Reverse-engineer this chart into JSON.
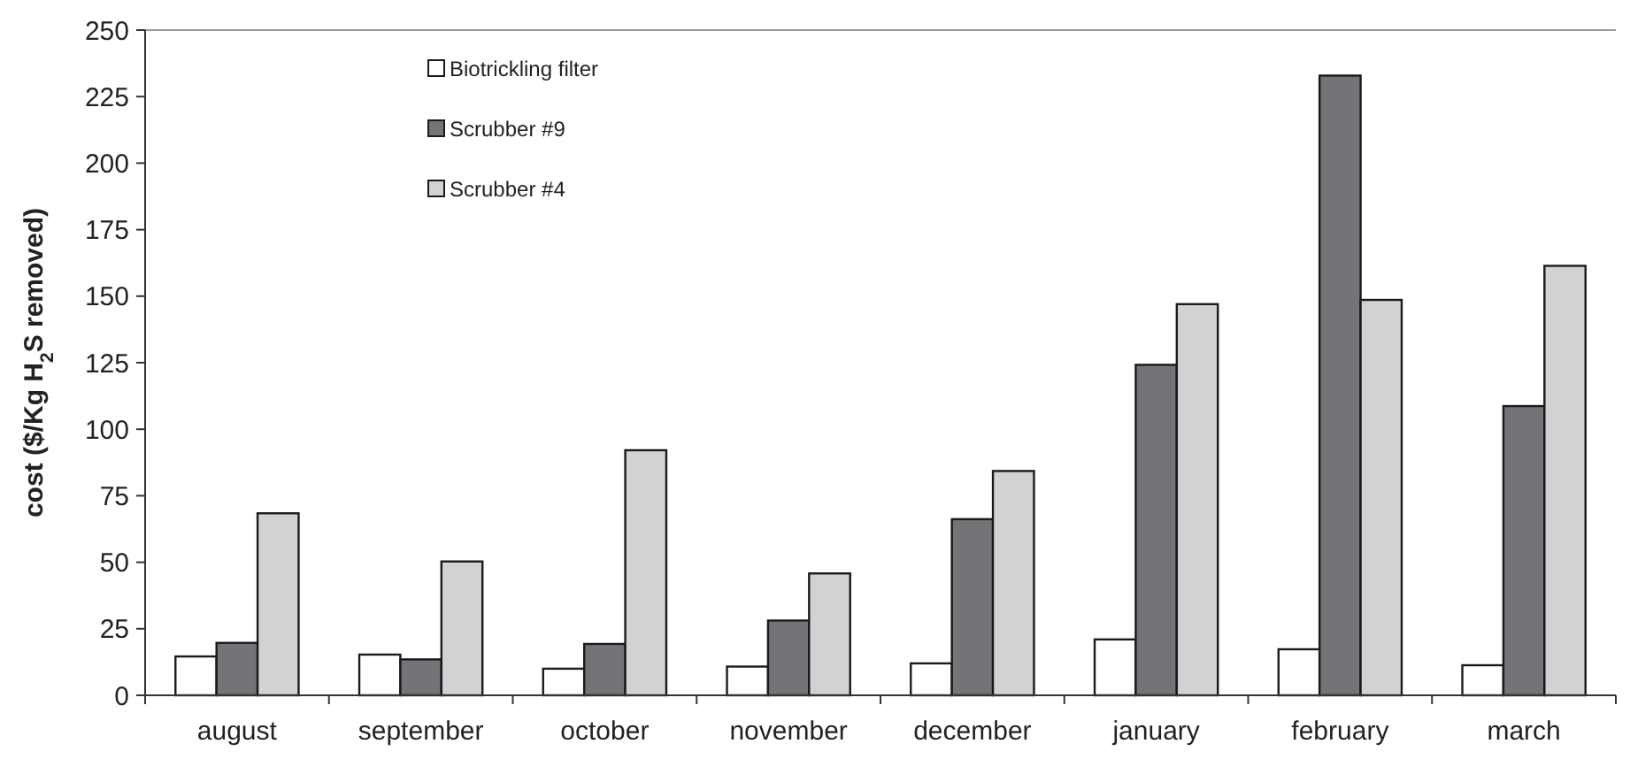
{
  "chart_data": {
    "type": "bar",
    "ylabel": "cost ($/Kg H$_{2}$S removed)",
    "categories": [
      "august",
      "september",
      "october",
      "november",
      "december",
      "january",
      "february",
      "march"
    ],
    "series": [
      {
        "name": "Biotrickling filter",
        "color": "#ffffff",
        "values": [
          14.6,
          15.3,
          10,
          10.8,
          12,
          21,
          17.3,
          11.3
        ]
      },
      {
        "name": "Scrubber #9",
        "color": "#737478",
        "values": [
          19.7,
          13.5,
          19.3,
          28.1,
          66.2,
          124.2,
          232.9,
          108.7
        ]
      },
      {
        "name": "Scrubber #4",
        "color": "#d1d2d4",
        "values": [
          68.4,
          50.3,
          92.1,
          45.8,
          84.3,
          147,
          148.6,
          161.4
        ]
      }
    ],
    "ylim": [
      0,
      250
    ],
    "yticks": [
      0,
      25,
      50,
      75,
      100,
      125,
      150,
      175,
      200,
      225,
      250
    ],
    "legend": "top left"
  }
}
